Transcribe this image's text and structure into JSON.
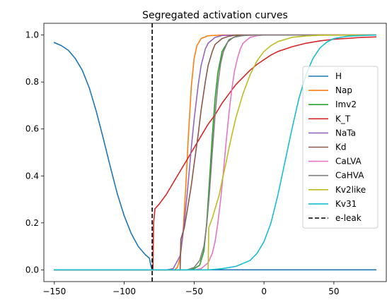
{
  "chart_data": {
    "type": "line",
    "title": "Segregated activation curves",
    "xlabel": "",
    "ylabel": "",
    "xlim": [
      -157.5,
      87.5
    ],
    "ylim": [
      -0.05,
      1.05
    ],
    "xticks": [
      -150,
      -100,
      -50,
      0,
      50
    ],
    "yticks": [
      0.0,
      0.2,
      0.4,
      0.6,
      0.8,
      1.0
    ],
    "ytick_labels": [
      "0.0",
      "0.2",
      "0.4",
      "0.6",
      "0.8",
      "1.0"
    ],
    "grid": false,
    "legend_placement": "center-right",
    "series": [
      {
        "name": "H",
        "color": "#1f77b4",
        "points": [
          [
            -150,
            0.968
          ],
          [
            -145,
            0.955
          ],
          [
            -140,
            0.935
          ],
          [
            -135,
            0.9
          ],
          [
            -130,
            0.85
          ],
          [
            -125,
            0.775
          ],
          [
            -120,
            0.675
          ],
          [
            -115,
            0.56
          ],
          [
            -110,
            0.44
          ],
          [
            -105,
            0.325
          ],
          [
            -100,
            0.23
          ],
          [
            -95,
            0.155
          ],
          [
            -90,
            0.1
          ],
          [
            -85,
            0.065
          ],
          [
            -82,
            0.05
          ],
          [
            -81,
            0.02
          ],
          [
            -80,
            0.0
          ],
          [
            80,
            0.0
          ]
        ]
      },
      {
        "name": "Nap",
        "color": "#ff7f0e",
        "points": [
          [
            -150,
            0.0
          ],
          [
            -64,
            0.0
          ],
          [
            -62,
            0.01
          ],
          [
            -60,
            0.05
          ],
          [
            -58,
            0.15
          ],
          [
            -56,
            0.35
          ],
          [
            -54,
            0.58
          ],
          [
            -52,
            0.78
          ],
          [
            -50,
            0.9
          ],
          [
            -48,
            0.955
          ],
          [
            -45,
            0.985
          ],
          [
            -40,
            0.997
          ],
          [
            -30,
            1.0
          ],
          [
            80,
            1.0
          ]
        ]
      },
      {
        "name": "Imv2",
        "color": "#2ca02c",
        "points": [
          [
            -150,
            0.0
          ],
          [
            -55,
            0.0
          ],
          [
            -50,
            0.005
          ],
          [
            -46,
            0.02
          ],
          [
            -43,
            0.08
          ],
          [
            -41,
            0.2
          ],
          [
            -39,
            0.38
          ],
          [
            -37,
            0.57
          ],
          [
            -35,
            0.73
          ],
          [
            -33,
            0.84
          ],
          [
            -30,
            0.93
          ],
          [
            -25,
            0.98
          ],
          [
            -20,
            0.995
          ],
          [
            -10,
            1.0
          ],
          [
            80,
            1.0
          ]
        ]
      },
      {
        "name": "K_T",
        "color": "#d62728",
        "points": [
          [
            -150,
            0.0
          ],
          [
            -79.5,
            0.0
          ],
          [
            -79,
            0.2
          ],
          [
            -78,
            0.26
          ],
          [
            -75,
            0.28
          ],
          [
            -70,
            0.32
          ],
          [
            -65,
            0.37
          ],
          [
            -60,
            0.42
          ],
          [
            -55,
            0.47
          ],
          [
            -50,
            0.52
          ],
          [
            -45,
            0.57
          ],
          [
            -40,
            0.62
          ],
          [
            -35,
            0.66
          ],
          [
            -30,
            0.71
          ],
          [
            -25,
            0.75
          ],
          [
            -20,
            0.79
          ],
          [
            -15,
            0.82
          ],
          [
            -10,
            0.85
          ],
          [
            -5,
            0.875
          ],
          [
            0,
            0.895
          ],
          [
            5,
            0.915
          ],
          [
            10,
            0.93
          ],
          [
            20,
            0.95
          ],
          [
            30,
            0.965
          ],
          [
            40,
            0.975
          ],
          [
            50,
            0.982
          ],
          [
            60,
            0.986
          ],
          [
            70,
            0.99
          ],
          [
            80,
            0.992
          ]
        ]
      },
      {
        "name": "NaTa",
        "color": "#9467bd",
        "points": [
          [
            -150,
            0.0
          ],
          [
            -70,
            0.0
          ],
          [
            -65,
            0.005
          ],
          [
            -60,
            0.06
          ],
          [
            -58,
            0.15
          ],
          [
            -55,
            0.32
          ],
          [
            -52,
            0.52
          ],
          [
            -50,
            0.64
          ],
          [
            -47,
            0.79
          ],
          [
            -45,
            0.87
          ],
          [
            -42,
            0.94
          ],
          [
            -40,
            0.965
          ],
          [
            -35,
            0.99
          ],
          [
            -30,
            0.998
          ],
          [
            -20,
            1.0
          ],
          [
            80,
            1.0
          ]
        ]
      },
      {
        "name": "Kd",
        "color": "#8c564b",
        "points": [
          [
            -150,
            0.0
          ],
          [
            -60,
            0.0
          ],
          [
            -59.5,
            0.13
          ],
          [
            -57,
            0.18
          ],
          [
            -55,
            0.25
          ],
          [
            -52,
            0.36
          ],
          [
            -50,
            0.45
          ],
          [
            -47,
            0.58
          ],
          [
            -45,
            0.68
          ],
          [
            -42,
            0.8
          ],
          [
            -40,
            0.87
          ],
          [
            -37,
            0.93
          ],
          [
            -35,
            0.96
          ],
          [
            -30,
            0.985
          ],
          [
            -25,
            0.995
          ],
          [
            -20,
            1.0
          ],
          [
            80,
            1.0
          ]
        ]
      },
      {
        "name": "CaLVA",
        "color": "#e377c2",
        "points": [
          [
            -150,
            0.0
          ],
          [
            -50,
            0.0
          ],
          [
            -45,
            0.005
          ],
          [
            -40,
            0.03
          ],
          [
            -37,
            0.07
          ],
          [
            -35,
            0.12
          ],
          [
            -33,
            0.2
          ],
          [
            -31,
            0.3
          ],
          [
            -29,
            0.42
          ],
          [
            -27,
            0.55
          ],
          [
            -25,
            0.67
          ],
          [
            -23,
            0.77
          ],
          [
            -21,
            0.85
          ],
          [
            -19,
            0.9
          ],
          [
            -17,
            0.94
          ],
          [
            -15,
            0.965
          ],
          [
            -10,
            0.99
          ],
          [
            -5,
            0.997
          ],
          [
            0,
            1.0
          ],
          [
            80,
            1.0
          ]
        ]
      },
      {
        "name": "CaHVA",
        "color": "#7f7f7f",
        "points": [
          [
            -150,
            0.0
          ],
          [
            -55,
            0.0
          ],
          [
            -50,
            0.01
          ],
          [
            -46,
            0.04
          ],
          [
            -43,
            0.1
          ],
          [
            -41,
            0.19
          ],
          [
            -39,
            0.33
          ],
          [
            -37,
            0.5
          ],
          [
            -35,
            0.66
          ],
          [
            -33,
            0.79
          ],
          [
            -31,
            0.88
          ],
          [
            -29,
            0.93
          ],
          [
            -26,
            0.97
          ],
          [
            -22,
            0.99
          ],
          [
            -15,
            0.998
          ],
          [
            -5,
            1.0
          ],
          [
            80,
            1.0
          ]
        ]
      },
      {
        "name": "Kv2like",
        "color": "#bcbd22",
        "points": [
          [
            -150,
            0.0
          ],
          [
            -40,
            0.0
          ],
          [
            -39.5,
            0.18
          ],
          [
            -37,
            0.22
          ],
          [
            -35,
            0.26
          ],
          [
            -32,
            0.32
          ],
          [
            -30,
            0.38
          ],
          [
            -27,
            0.46
          ],
          [
            -25,
            0.52
          ],
          [
            -22,
            0.6
          ],
          [
            -20,
            0.65
          ],
          [
            -15,
            0.75
          ],
          [
            -10,
            0.83
          ],
          [
            -5,
            0.89
          ],
          [
            0,
            0.93
          ],
          [
            5,
            0.955
          ],
          [
            10,
            0.972
          ],
          [
            20,
            0.99
          ],
          [
            30,
            0.996
          ],
          [
            40,
            0.999
          ],
          [
            80,
            1.0
          ]
        ]
      },
      {
        "name": "Kv31",
        "color": "#17becf",
        "points": [
          [
            -150,
            0.0
          ],
          [
            -40,
            0.0
          ],
          [
            -30,
            0.005
          ],
          [
            -20,
            0.015
          ],
          [
            -10,
            0.04
          ],
          [
            -5,
            0.07
          ],
          [
            0,
            0.12
          ],
          [
            5,
            0.2
          ],
          [
            10,
            0.32
          ],
          [
            15,
            0.46
          ],
          [
            20,
            0.6
          ],
          [
            25,
            0.73
          ],
          [
            30,
            0.83
          ],
          [
            35,
            0.9
          ],
          [
            40,
            0.945
          ],
          [
            45,
            0.97
          ],
          [
            50,
            0.985
          ],
          [
            60,
            0.995
          ],
          [
            70,
            0.998
          ],
          [
            80,
            1.0
          ]
        ]
      }
    ],
    "vline": {
      "name": "e-leak",
      "x": -80,
      "color": "#000000",
      "style": "dashed"
    }
  }
}
